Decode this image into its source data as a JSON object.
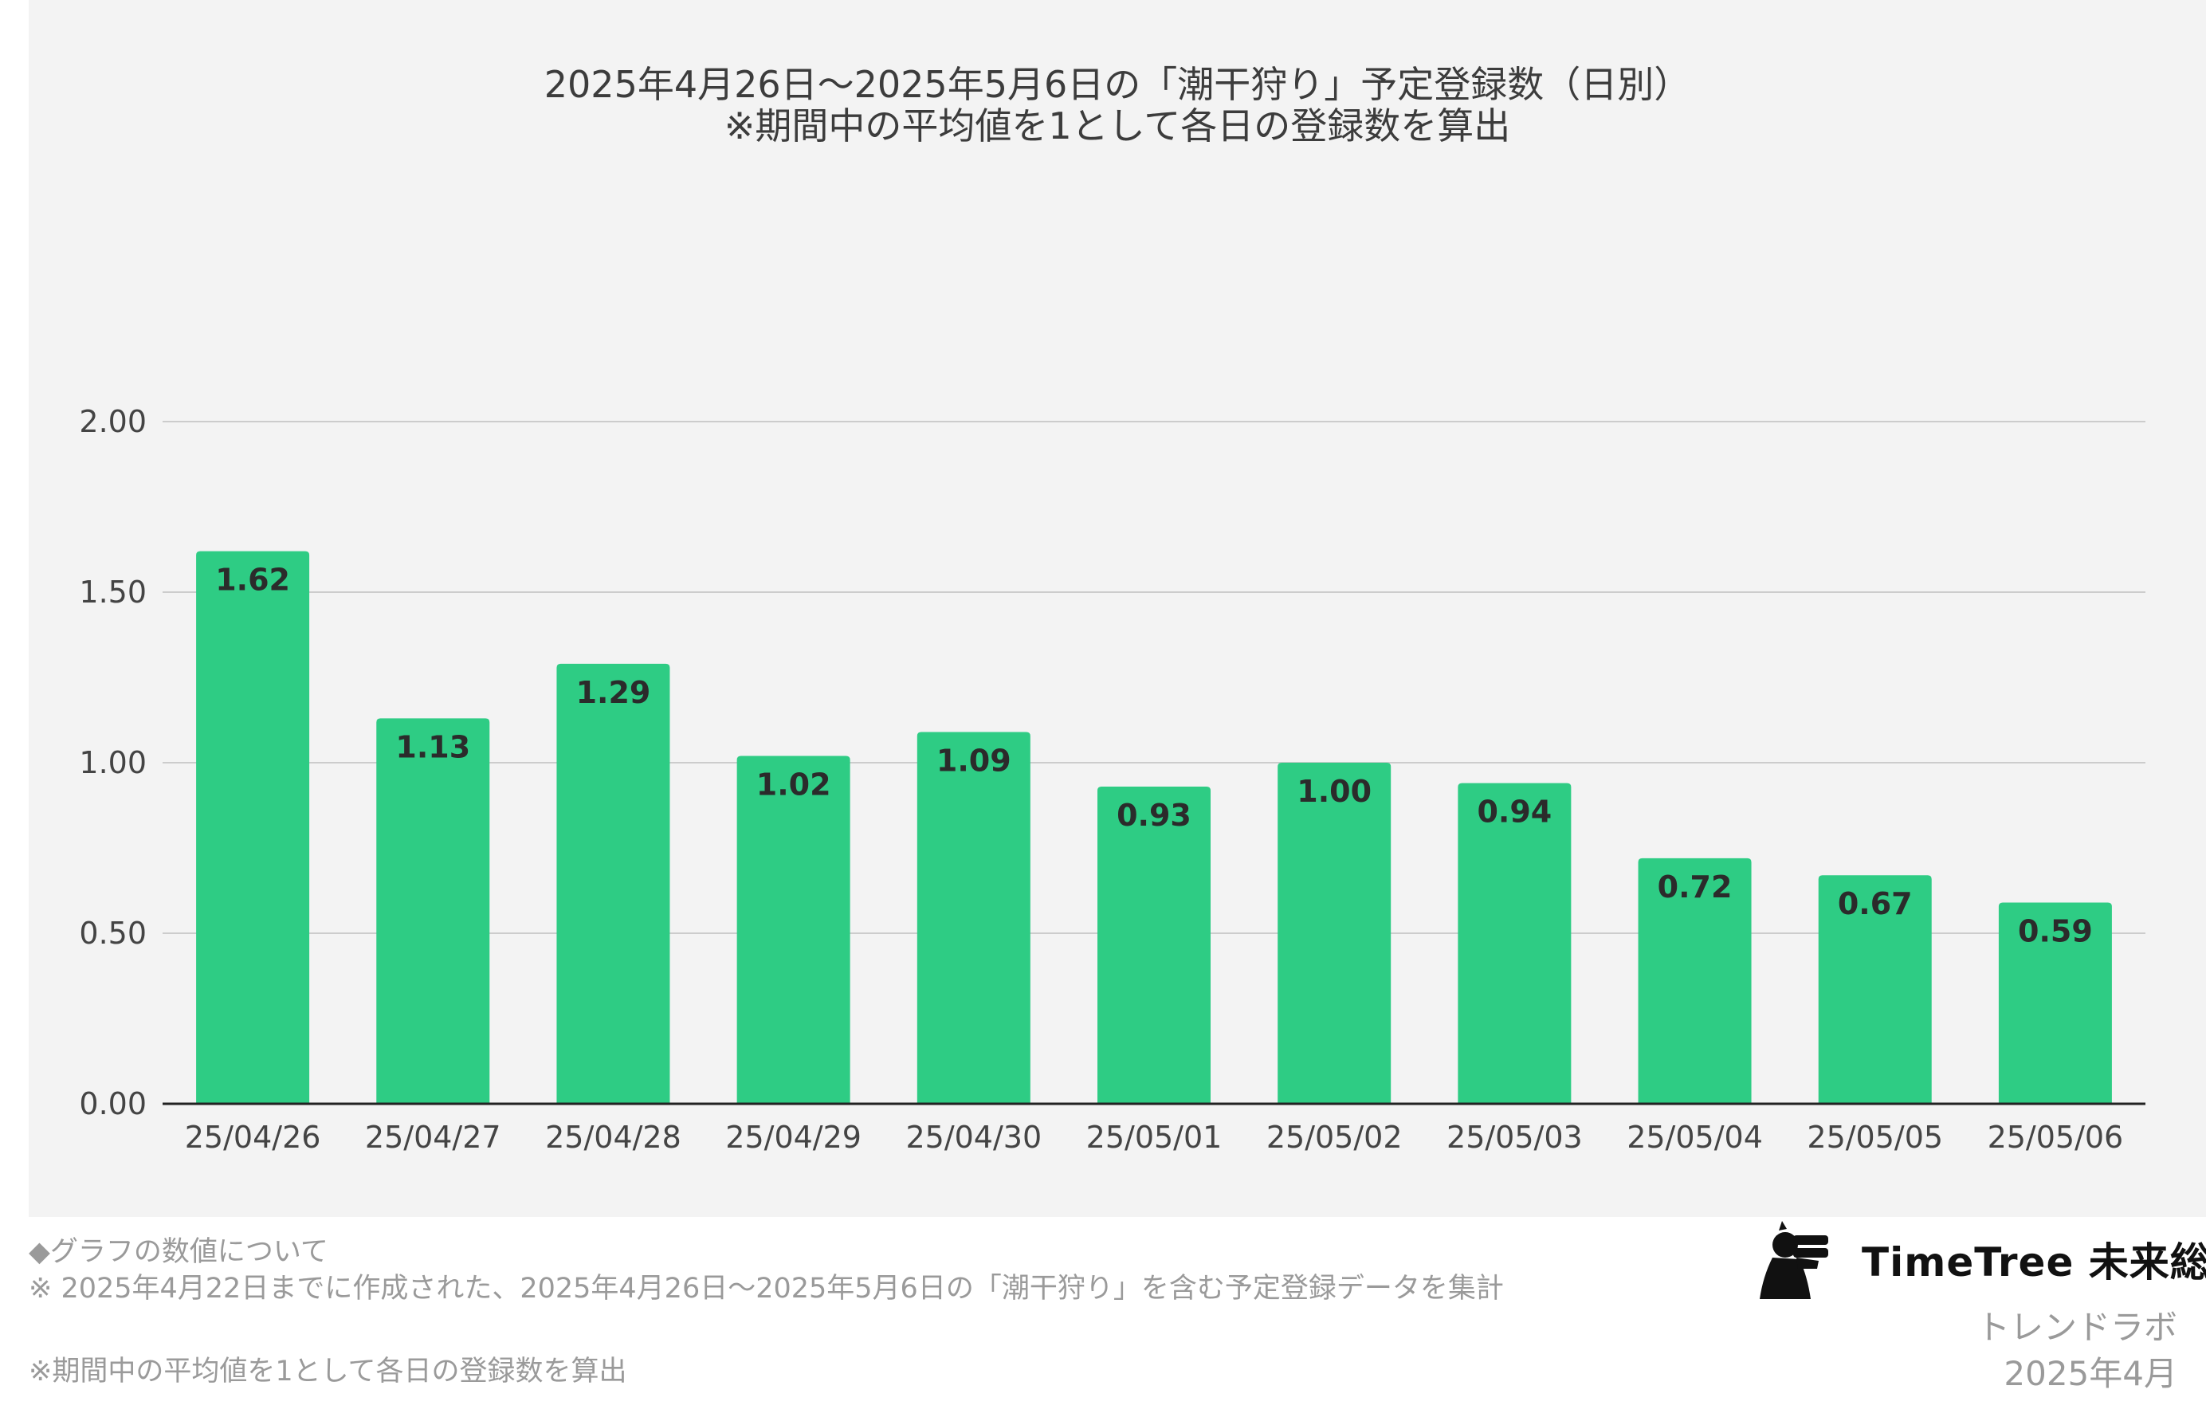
{
  "chart_data": {
    "type": "bar",
    "title": "2025年4月26日〜2025年5月6日の「潮干狩り」予定登録数（日別）",
    "subtitle": "※期間中の平均値を1として各日の登録数を算出",
    "categories": [
      "25/04/26",
      "25/04/27",
      "25/04/28",
      "25/04/29",
      "25/04/30",
      "25/05/01",
      "25/05/02",
      "25/05/03",
      "25/05/04",
      "25/05/05",
      "25/05/06"
    ],
    "values": [
      1.62,
      1.13,
      1.29,
      1.02,
      1.09,
      0.93,
      1.0,
      0.94,
      0.72,
      0.67,
      0.59
    ],
    "value_labels": [
      "1.62",
      "1.13",
      "1.29",
      "1.02",
      "1.09",
      "0.93",
      "1.00",
      "0.94",
      "0.72",
      "0.67",
      "0.59"
    ],
    "ylim": [
      0,
      2
    ],
    "yticks": [
      0,
      0.5,
      1.0,
      1.5,
      2.0
    ],
    "ytick_labels": [
      "0.00",
      "0.50",
      "1.00",
      "1.50",
      "2.00"
    ],
    "grid": true,
    "legend": "none",
    "colors": {
      "bar": "#2ecc84",
      "grid": "#cccccc",
      "axis": "#222222",
      "panel": "#f3f3f3"
    }
  },
  "notes": {
    "heading": "◆グラフの数値について",
    "line1": "※ 2025年4月22日までに作成された、2025年4月26日〜2025年5月6日の「潮干狩り」を含む予定登録データを集計",
    "line2": "※期間中の平均値を1として各日の登録数を算出"
  },
  "brand": {
    "logo_icon": "binoculars-person-icon",
    "name": "TimeTree 未来総研",
    "sub": "トレンドラボ",
    "date": "2025年4月"
  }
}
